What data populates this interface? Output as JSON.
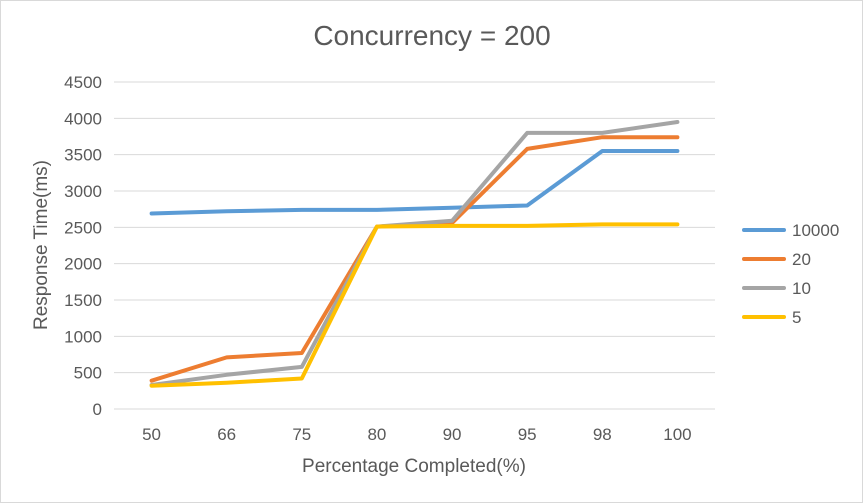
{
  "chart_data": {
    "type": "line",
    "title": "Concurrency = 200",
    "xlabel": "Percentage Completed(%)",
    "ylabel": "Response Time(ms)",
    "categories": [
      "50",
      "66",
      "75",
      "80",
      "90",
      "95",
      "98",
      "100"
    ],
    "ylim": [
      0,
      4500
    ],
    "yticks": [
      0,
      500,
      1000,
      1500,
      2000,
      2500,
      3000,
      3500,
      4000,
      4500
    ],
    "grid": true,
    "legend_position": "right",
    "series": [
      {
        "name": "10000",
        "color": "#5b9bd5",
        "values": [
          2690,
          2720,
          2740,
          2740,
          2770,
          2800,
          3550,
          3550
        ]
      },
      {
        "name": "20",
        "color": "#ed7d31",
        "values": [
          390,
          710,
          770,
          2510,
          2560,
          3580,
          3740,
          3740
        ]
      },
      {
        "name": "10",
        "color": "#a5a5a5",
        "values": [
          330,
          470,
          580,
          2510,
          2590,
          3800,
          3800,
          3950
        ]
      },
      {
        "name": "5",
        "color": "#ffc000",
        "values": [
          320,
          360,
          420,
          2510,
          2520,
          2520,
          2540,
          2540
        ]
      }
    ]
  }
}
